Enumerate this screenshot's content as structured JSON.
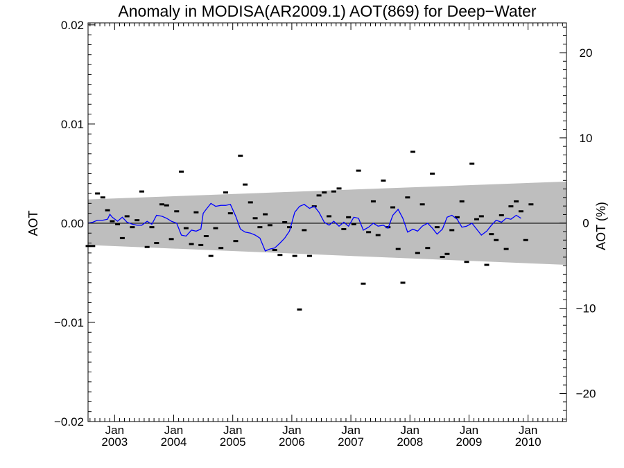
{
  "chart_data": {
    "type": "scatter",
    "title": "Anomaly in MODISA(AR2009.1) AOT(869) for Deep−Water",
    "ylabel": "AOT",
    "y2label": "AOT (%)",
    "xlim": [
      2002.55,
      2010.65
    ],
    "ylim": [
      -0.02,
      0.0202
    ],
    "y2lim": [
      -23.3,
      23.5
    ],
    "x_ticks": [
      {
        "x": 2003,
        "month": "Jan",
        "year": "2003"
      },
      {
        "x": 2004,
        "month": "Jan",
        "year": "2004"
      },
      {
        "x": 2005,
        "month": "Jan",
        "year": "2005"
      },
      {
        "x": 2006,
        "month": "Jan",
        "year": "2006"
      },
      {
        "x": 2007,
        "month": "Jan",
        "year": "2007"
      },
      {
        "x": 2008,
        "month": "Jan",
        "year": "2008"
      },
      {
        "x": 2009,
        "month": "Jan",
        "year": "2009"
      },
      {
        "x": 2010,
        "month": "Jan",
        "year": "2010"
      }
    ],
    "y_ticks": [
      {
        "v": 0.02,
        "label": "0.02"
      },
      {
        "v": 0.01,
        "label": "0.01"
      },
      {
        "v": 0.0,
        "label": "0.00"
      },
      {
        "v": -0.01,
        "label": "−0.01"
      },
      {
        "v": -0.02,
        "label": "−0.02"
      }
    ],
    "y2_ticks": [
      {
        "v": 20,
        "label": "20"
      },
      {
        "v": 10,
        "label": "10"
      },
      {
        "v": 0,
        "label": "0"
      },
      {
        "v": -10,
        "label": "−10"
      },
      {
        "v": -20,
        "label": "−20"
      }
    ],
    "band": {
      "x": [
        2002.55,
        2010.65
      ],
      "upper": [
        0.0024,
        0.0042
      ],
      "lower": [
        -0.0022,
        -0.0042
      ]
    },
    "zero_line": 0,
    "colors": {
      "band": "#bebebe",
      "line": "#0000ff",
      "marker": "#000000"
    },
    "markers": [
      [
        2002.55,
        -0.0023
      ],
      [
        2002.63,
        -0.0023
      ],
      [
        2002.71,
        0.003
      ],
      [
        2002.8,
        0.0026
      ],
      [
        2002.88,
        0.0013
      ],
      [
        2002.96,
        0.0002
      ],
      [
        2003.05,
        -0.0001
      ],
      [
        2003.13,
        -0.0015
      ],
      [
        2003.21,
        0.0007
      ],
      [
        2003.3,
        -0.0004
      ],
      [
        2003.38,
        0.0003
      ],
      [
        2003.46,
        0.0032
      ],
      [
        2003.55,
        -0.0024
      ],
      [
        2003.63,
        -0.0004
      ],
      [
        2003.71,
        -0.002
      ],
      [
        2003.8,
        0.0019
      ],
      [
        2003.88,
        0.0018
      ],
      [
        2003.96,
        -0.0016
      ],
      [
        2004.05,
        0.0012
      ],
      [
        2004.13,
        0.0052
      ],
      [
        2004.21,
        -0.0005
      ],
      [
        2004.3,
        -0.0021
      ],
      [
        2004.38,
        0.0011
      ],
      [
        2004.46,
        -0.0022
      ],
      [
        2004.55,
        -0.0013
      ],
      [
        2004.63,
        -0.0033
      ],
      [
        2004.71,
        -0.0005
      ],
      [
        2004.8,
        -0.0025
      ],
      [
        2004.88,
        0.0031
      ],
      [
        2004.96,
        0.001
      ],
      [
        2005.05,
        -0.0018
      ],
      [
        2005.13,
        0.0068
      ],
      [
        2005.21,
        0.0039
      ],
      [
        2005.3,
        0.0021
      ],
      [
        2005.38,
        0.0005
      ],
      [
        2005.46,
        -0.0004
      ],
      [
        2005.55,
        0.0009
      ],
      [
        2005.63,
        -0.0002
      ],
      [
        2005.71,
        -0.0027
      ],
      [
        2005.8,
        -0.0032
      ],
      [
        2005.88,
        0.0001
      ],
      [
        2005.96,
        -0.0004
      ],
      [
        2006.05,
        -0.0033
      ],
      [
        2006.13,
        -0.0087
      ],
      [
        2006.21,
        -0.0007
      ],
      [
        2006.3,
        -0.0033
      ],
      [
        2006.38,
        0.0017
      ],
      [
        2006.46,
        0.0028
      ],
      [
        2006.55,
        0.0031
      ],
      [
        2006.63,
        0.0007
      ],
      [
        2006.71,
        0.0032
      ],
      [
        2006.8,
        0.0035
      ],
      [
        2006.88,
        -0.0006
      ],
      [
        2006.96,
        0.0006
      ],
      [
        2007.05,
        -0.0001
      ],
      [
        2007.13,
        0.0053
      ],
      [
        2007.21,
        -0.0061
      ],
      [
        2007.3,
        -0.0009
      ],
      [
        2007.38,
        0.0022
      ],
      [
        2007.46,
        -0.0012
      ],
      [
        2007.55,
        0.0043
      ],
      [
        2007.63,
        -0.0004
      ],
      [
        2007.71,
        0.0016
      ],
      [
        2007.8,
        -0.0026
      ],
      [
        2007.88,
        -0.006
      ],
      [
        2007.96,
        0.0026
      ],
      [
        2008.05,
        0.0072
      ],
      [
        2008.13,
        -0.003
      ],
      [
        2008.21,
        0.0019
      ],
      [
        2008.3,
        -0.0025
      ],
      [
        2008.38,
        0.005
      ],
      [
        2008.46,
        -0.0004
      ],
      [
        2008.55,
        -0.0034
      ],
      [
        2008.63,
        -0.0031
      ],
      [
        2008.71,
        -0.0007
      ],
      [
        2008.8,
        0.0006
      ],
      [
        2008.88,
        0.0022
      ],
      [
        2008.96,
        -0.0039
      ],
      [
        2009.05,
        0.006
      ],
      [
        2009.13,
        0.0004
      ],
      [
        2009.21,
        0.0007
      ],
      [
        2009.3,
        -0.0042
      ],
      [
        2009.38,
        -0.0011
      ],
      [
        2009.46,
        -0.0017
      ],
      [
        2009.55,
        0.0008
      ],
      [
        2009.63,
        -0.0026
      ],
      [
        2009.71,
        0.0017
      ],
      [
        2009.8,
        0.0022
      ],
      [
        2009.88,
        0.0012
      ],
      [
        2009.96,
        -0.0017
      ],
      [
        2010.05,
        0.0019
      ]
    ],
    "line": [
      [
        2002.55,
        0.0
      ],
      [
        2002.63,
        0.0001
      ],
      [
        2002.71,
        0.0003
      ],
      [
        2002.8,
        0.0003
      ],
      [
        2002.88,
        0.0004
      ],
      [
        2002.92,
        0.0009
      ],
      [
        2002.96,
        0.0006
      ],
      [
        2003.05,
        0.0002
      ],
      [
        2003.13,
        0.0006
      ],
      [
        2003.21,
        0.0001
      ],
      [
        2003.3,
        -0.0001
      ],
      [
        2003.38,
        -0.0002
      ],
      [
        2003.46,
        -0.0002
      ],
      [
        2003.55,
        0.0002
      ],
      [
        2003.63,
        -0.0001
      ],
      [
        2003.71,
        0.0008
      ],
      [
        2003.8,
        0.0007
      ],
      [
        2003.88,
        0.0005
      ],
      [
        2003.96,
        0.0002
      ],
      [
        2004.05,
        0.0
      ],
      [
        2004.13,
        -0.0012
      ],
      [
        2004.21,
        -0.0013
      ],
      [
        2004.3,
        -0.0007
      ],
      [
        2004.38,
        -0.0008
      ],
      [
        2004.46,
        -0.0006
      ],
      [
        2004.5,
        0.001
      ],
      [
        2004.55,
        0.0014
      ],
      [
        2004.63,
        0.002
      ],
      [
        2004.71,
        0.0017
      ],
      [
        2004.8,
        0.0018
      ],
      [
        2004.88,
        0.0018
      ],
      [
        2004.96,
        0.0019
      ],
      [
        2005.05,
        0.0007
      ],
      [
        2005.13,
        -0.0006
      ],
      [
        2005.21,
        -0.0009
      ],
      [
        2005.3,
        -0.001
      ],
      [
        2005.38,
        -0.0012
      ],
      [
        2005.46,
        -0.0015
      ],
      [
        2005.55,
        -0.0028
      ],
      [
        2005.63,
        -0.0026
      ],
      [
        2005.71,
        -0.0025
      ],
      [
        2005.8,
        -0.002
      ],
      [
        2005.88,
        -0.0015
      ],
      [
        2005.96,
        -0.0008
      ],
      [
        2006.05,
        0.0011
      ],
      [
        2006.13,
        0.0017
      ],
      [
        2006.21,
        0.0019
      ],
      [
        2006.3,
        0.0015
      ],
      [
        2006.38,
        0.0017
      ],
      [
        2006.46,
        0.0011
      ],
      [
        2006.55,
        0.0001
      ],
      [
        2006.63,
        -0.0002
      ],
      [
        2006.71,
        0.0002
      ],
      [
        2006.8,
        -0.0003
      ],
      [
        2006.88,
        0.0001
      ],
      [
        2006.96,
        -0.0003
      ],
      [
        2007.05,
        0.0006
      ],
      [
        2007.13,
        0.0005
      ],
      [
        2007.21,
        -0.0007
      ],
      [
        2007.3,
        -0.0004
      ],
      [
        2007.38,
        0.0
      ],
      [
        2007.46,
        -0.0003
      ],
      [
        2007.55,
        -0.0002
      ],
      [
        2007.63,
        -0.0005
      ],
      [
        2007.71,
        0.0008
      ],
      [
        2007.8,
        0.0014
      ],
      [
        2007.88,
        0.0005
      ],
      [
        2007.96,
        -0.0009
      ],
      [
        2008.05,
        -0.0006
      ],
      [
        2008.13,
        -0.0008
      ],
      [
        2008.21,
        -0.0003
      ],
      [
        2008.3,
        0.0
      ],
      [
        2008.38,
        -0.0005
      ],
      [
        2008.46,
        -0.0011
      ],
      [
        2008.55,
        -0.0006
      ],
      [
        2008.63,
        0.0006
      ],
      [
        2008.71,
        0.0008
      ],
      [
        2008.8,
        0.0004
      ],
      [
        2008.88,
        -0.0004
      ],
      [
        2008.96,
        -0.0003
      ],
      [
        2009.05,
        0.0
      ],
      [
        2009.13,
        -0.0006
      ],
      [
        2009.21,
        -0.0012
      ],
      [
        2009.3,
        -0.0008
      ],
      [
        2009.38,
        -0.0002
      ],
      [
        2009.46,
        0.0003
      ],
      [
        2009.55,
        0.0001
      ],
      [
        2009.63,
        0.0005
      ],
      [
        2009.71,
        0.0004
      ],
      [
        2009.8,
        0.0008
      ],
      [
        2009.88,
        0.0005
      ]
    ]
  }
}
